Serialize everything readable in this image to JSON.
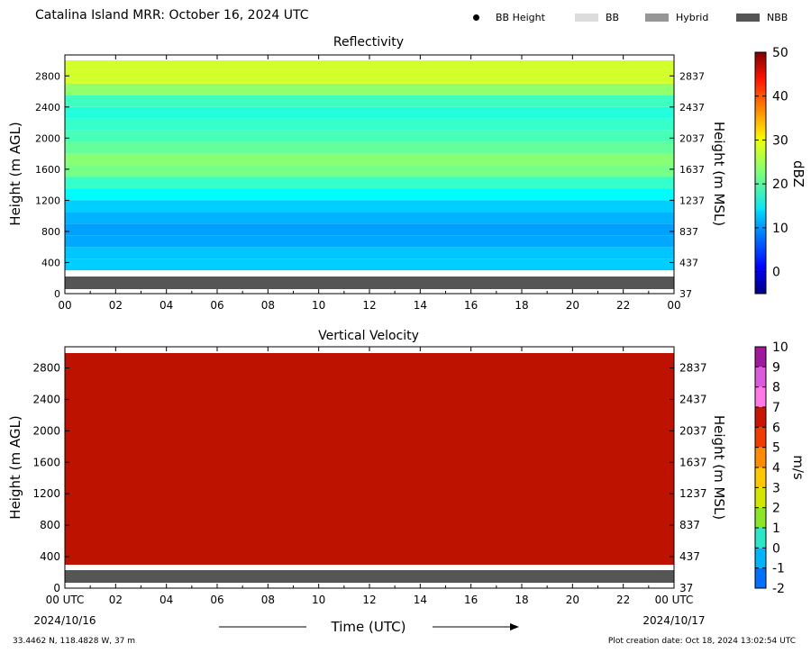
{
  "header": {
    "title": "Catalina Island MRR:  October 16, 2024 UTC",
    "legend": [
      {
        "label": "BB Height",
        "kind": "dot",
        "color": "#000000"
      },
      {
        "label": "BB",
        "kind": "swatch",
        "color": "#dcdcdc"
      },
      {
        "label": "Hybrid",
        "kind": "swatch",
        "color": "#969696"
      },
      {
        "label": "NBB",
        "kind": "swatch",
        "color": "#555555"
      }
    ]
  },
  "footer": {
    "location": "33.4462 N, 118.4828 W, 37 m",
    "creation": "Plot creation date: Oct 18, 2024 13:02:54 UTC",
    "xlabel": "Time (UTC)",
    "date_start": "2024/10/16",
    "date_end": "2024/10/17"
  },
  "chart_data": [
    {
      "type": "heatmap",
      "title": "Reflectivity",
      "ylabel": "Height (m AGL)",
      "ylabel_right": "Height (m MSL)",
      "x_ticks": [
        "00",
        "02",
        "04",
        "06",
        "08",
        "10",
        "12",
        "14",
        "16",
        "18",
        "20",
        "22",
        "00"
      ],
      "xlim": [
        0,
        24
      ],
      "ylim": [
        0,
        3000
      ],
      "y_ticks": [
        0,
        400,
        800,
        1200,
        1600,
        2000,
        2400,
        2800
      ],
      "y_ticks_right": [
        "37",
        "437",
        "837",
        "1237",
        "1637",
        "2037",
        "2437",
        "2837"
      ],
      "colorbar": {
        "label": "dBZ",
        "range": [
          -5,
          50
        ],
        "ticks": [
          "0",
          "10",
          "20",
          "30",
          "40",
          "50"
        ],
        "ticks_values": [
          0,
          10,
          20,
          30,
          40,
          50
        ]
      },
      "bright_band_type": "NBB",
      "profile": [
        {
          "height": 300,
          "dbz": 13
        },
        {
          "height": 450,
          "dbz": 13
        },
        {
          "height": 600,
          "dbz": 12
        },
        {
          "height": 750,
          "dbz": 10
        },
        {
          "height": 900,
          "dbz": 11
        },
        {
          "height": 1050,
          "dbz": 12
        },
        {
          "height": 1200,
          "dbz": 14
        },
        {
          "height": 1350,
          "dbz": 17
        },
        {
          "height": 1500,
          "dbz": 20
        },
        {
          "height": 1650,
          "dbz": 24
        },
        {
          "height": 1800,
          "dbz": 22
        },
        {
          "height": 1950,
          "dbz": 20
        },
        {
          "height": 2100,
          "dbz": 19
        },
        {
          "height": 2250,
          "dbz": 18
        },
        {
          "height": 2400,
          "dbz": 17
        },
        {
          "height": 2550,
          "dbz": 21
        },
        {
          "height": 2700,
          "dbz": 26
        },
        {
          "height": 2850,
          "dbz": 28
        },
        {
          "height": 3000,
          "dbz": 26
        }
      ]
    },
    {
      "type": "heatmap",
      "title": "Vertical Velocity",
      "ylabel": "Height (m AGL)",
      "ylabel_right": "Height (m MSL)",
      "x_ticks": [
        "00 UTC",
        "02",
        "04",
        "06",
        "08",
        "10",
        "12",
        "14",
        "16",
        "18",
        "20",
        "22",
        "00 UTC"
      ],
      "xlim": [
        0,
        24
      ],
      "ylim": [
        0,
        3000
      ],
      "y_ticks": [
        0,
        400,
        800,
        1200,
        1600,
        2000,
        2400,
        2800
      ],
      "y_ticks_right": [
        "37",
        "437",
        "837",
        "1237",
        "1637",
        "2037",
        "2437",
        "2837"
      ],
      "colorbar": {
        "label": "m/s",
        "range": [
          -2,
          10
        ],
        "ticks": [
          "-2",
          "-1",
          "0",
          "1",
          "2",
          "3",
          "4",
          "5",
          "6",
          "7",
          "8",
          "9",
          "10"
        ],
        "ticks_values": [
          -2,
          -1,
          0,
          1,
          2,
          3,
          4,
          5,
          6,
          7,
          8,
          9,
          10
        ]
      },
      "bright_band_type": "NBB",
      "fill_value": 6.2
    }
  ]
}
